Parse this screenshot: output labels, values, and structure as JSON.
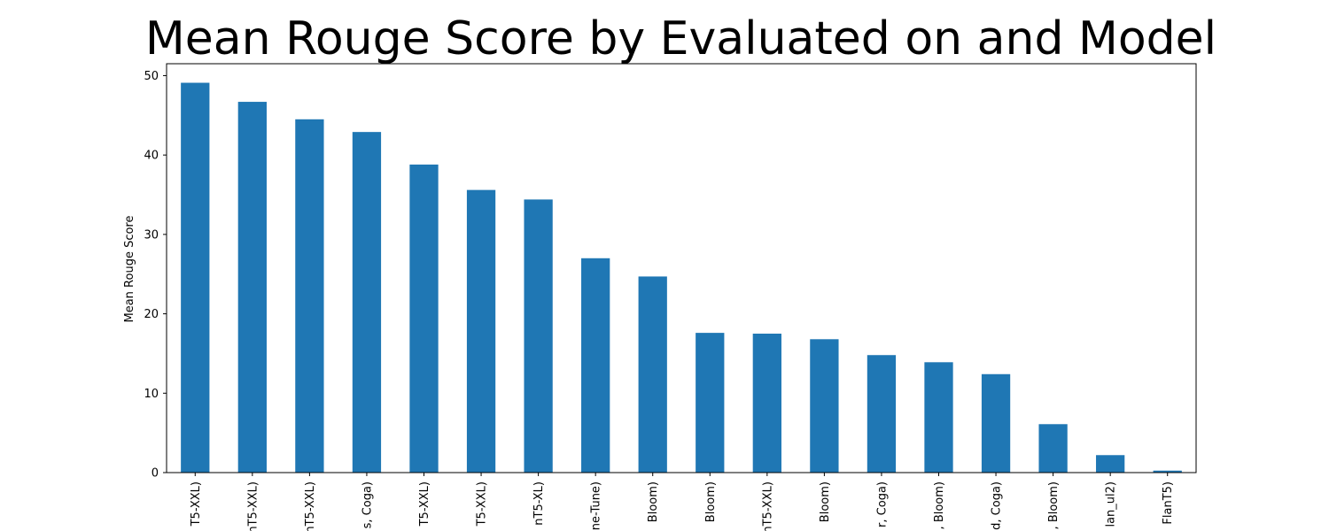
{
  "chart_data": {
    "type": "bar",
    "title": "Mean Rouge Score by Evaluated on and Model",
    "xlabel": "",
    "ylabel": "Mean Rouge Score",
    "ylim": [
      0,
      51.5
    ],
    "yticks": [
      0,
      10,
      20,
      30,
      40,
      50
    ],
    "color": "#1f77b4",
    "grid": false,
    "categories": [
      "T5-XXL)",
      "nT5-XXL)",
      "nT5-XXL)",
      "s, Coga)",
      "T5-XXL)",
      "T5-XXL)",
      "nT5-XL)",
      "ne-Tune)",
      "Bloom)",
      "Bloom)",
      "nT5-XXL)",
      "Bloom)",
      "r, Coga)",
      ", Bloom)",
      "d, Coga)",
      ", Bloom)",
      "lan_ul2)",
      "FlanT5)"
    ],
    "values": [
      49.1,
      46.7,
      44.5,
      42.9,
      38.8,
      35.6,
      34.4,
      27.0,
      24.7,
      17.6,
      17.5,
      16.8,
      14.8,
      13.9,
      12.4,
      6.1,
      2.2,
      0.25
    ]
  }
}
